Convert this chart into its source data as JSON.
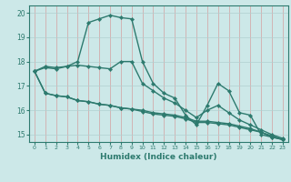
{
  "xlabel": "Humidex (Indice chaleur)",
  "xlim": [
    -0.5,
    23.5
  ],
  "ylim": [
    14.7,
    20.3
  ],
  "x": [
    0,
    1,
    2,
    3,
    4,
    5,
    6,
    7,
    8,
    9,
    10,
    11,
    12,
    13,
    14,
    15,
    16,
    17,
    18,
    19,
    20,
    21,
    22,
    23
  ],
  "line1": [
    17.6,
    17.8,
    17.75,
    17.8,
    18.0,
    19.6,
    19.75,
    19.9,
    19.8,
    19.75,
    18.0,
    17.1,
    16.7,
    16.5,
    15.8,
    15.4,
    16.2,
    17.1,
    16.8,
    15.9,
    15.8,
    15.0,
    14.9,
    14.8
  ],
  "line2": [
    17.6,
    17.75,
    17.7,
    17.8,
    17.85,
    17.8,
    17.75,
    17.7,
    18.0,
    18.0,
    17.1,
    16.8,
    16.5,
    16.3,
    16.0,
    15.7,
    16.0,
    16.2,
    15.9,
    15.6,
    15.4,
    15.2,
    15.0,
    14.85
  ],
  "line3": [
    17.6,
    16.7,
    16.6,
    16.55,
    16.4,
    16.35,
    16.25,
    16.2,
    16.1,
    16.05,
    15.95,
    15.85,
    15.8,
    15.75,
    15.65,
    15.5,
    15.5,
    15.45,
    15.4,
    15.3,
    15.2,
    15.1,
    14.9,
    14.8
  ],
  "line4": [
    17.6,
    16.7,
    16.6,
    16.55,
    16.4,
    16.35,
    16.25,
    16.2,
    16.1,
    16.05,
    16.0,
    15.9,
    15.85,
    15.8,
    15.7,
    15.55,
    15.55,
    15.5,
    15.45,
    15.35,
    15.25,
    15.1,
    14.95,
    14.8
  ],
  "bg_color": "#cce8e8",
  "grid_color": "#b0d8d8",
  "line_color": "#2d7a6e",
  "marker": "D",
  "marker_size": 2.2,
  "line_width": 1.0,
  "yticks": [
    15,
    16,
    17,
    18,
    19,
    20
  ],
  "xticks": [
    0,
    1,
    2,
    3,
    4,
    5,
    6,
    7,
    8,
    9,
    10,
    11,
    12,
    13,
    14,
    15,
    16,
    17,
    18,
    19,
    20,
    21,
    22,
    23
  ]
}
